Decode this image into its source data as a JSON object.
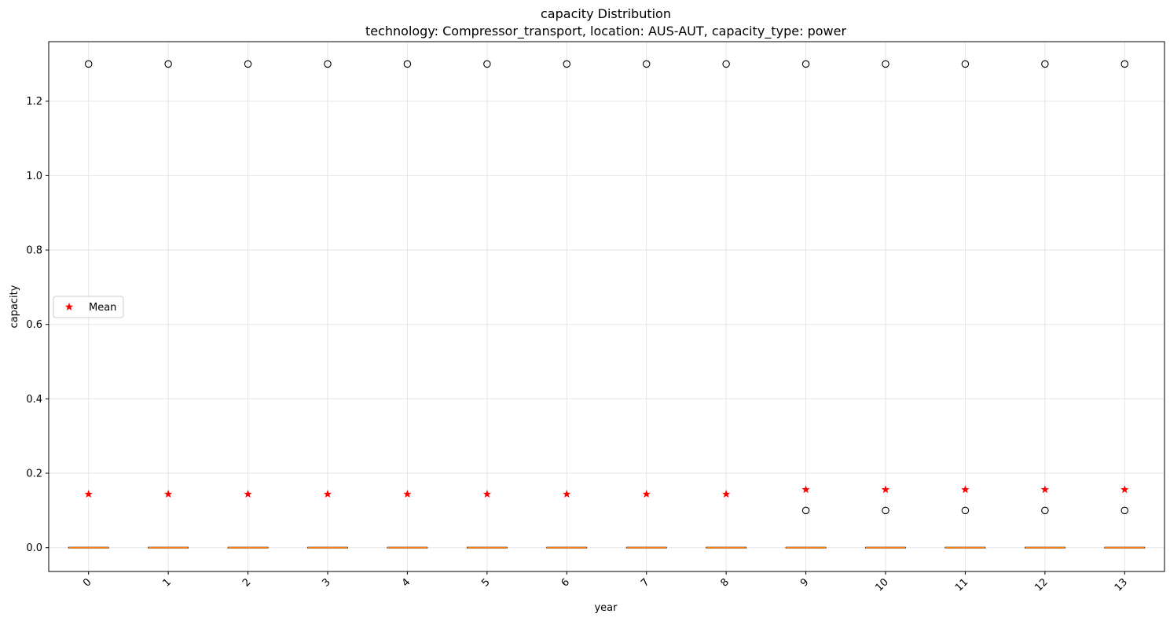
{
  "chart_data": {
    "type": "box",
    "title": "capacity Distribution",
    "subtitle": "technology: Compressor_transport, location: AUS-AUT, capacity_type: power",
    "xlabel": "year",
    "ylabel": "capacity",
    "categories": [
      "0",
      "1",
      "2",
      "3",
      "4",
      "5",
      "6",
      "7",
      "8",
      "9",
      "10",
      "11",
      "12",
      "13"
    ],
    "ylim": [
      -0.064,
      1.36
    ],
    "yticks": [
      0.0,
      0.2,
      0.4,
      0.6,
      0.8,
      1.0,
      1.2
    ],
    "ytick_labels": [
      "0.0",
      "0.2",
      "0.4",
      "0.6",
      "0.8",
      "1.0",
      "1.2"
    ],
    "grid": true,
    "legend": {
      "placement": "center-left",
      "entries": [
        {
          "label": "Mean",
          "marker": "star",
          "color": "#ff0000"
        }
      ]
    },
    "box_stats": [
      {
        "x": "0",
        "q1": 0,
        "median": 0,
        "q3": 0,
        "whisker_low": 0,
        "whisker_high": 0,
        "mean": 0.144,
        "outliers": [
          1.3
        ]
      },
      {
        "x": "1",
        "q1": 0,
        "median": 0,
        "q3": 0,
        "whisker_low": 0,
        "whisker_high": 0,
        "mean": 0.144,
        "outliers": [
          1.3
        ]
      },
      {
        "x": "2",
        "q1": 0,
        "median": 0,
        "q3": 0,
        "whisker_low": 0,
        "whisker_high": 0,
        "mean": 0.144,
        "outliers": [
          1.3
        ]
      },
      {
        "x": "3",
        "q1": 0,
        "median": 0,
        "q3": 0,
        "whisker_low": 0,
        "whisker_high": 0,
        "mean": 0.144,
        "outliers": [
          1.3
        ]
      },
      {
        "x": "4",
        "q1": 0,
        "median": 0,
        "q3": 0,
        "whisker_low": 0,
        "whisker_high": 0,
        "mean": 0.144,
        "outliers": [
          1.3
        ]
      },
      {
        "x": "5",
        "q1": 0,
        "median": 0,
        "q3": 0,
        "whisker_low": 0,
        "whisker_high": 0,
        "mean": 0.144,
        "outliers": [
          1.3
        ]
      },
      {
        "x": "6",
        "q1": 0,
        "median": 0,
        "q3": 0,
        "whisker_low": 0,
        "whisker_high": 0,
        "mean": 0.144,
        "outliers": [
          1.3
        ]
      },
      {
        "x": "7",
        "q1": 0,
        "median": 0,
        "q3": 0,
        "whisker_low": 0,
        "whisker_high": 0,
        "mean": 0.144,
        "outliers": [
          1.3
        ]
      },
      {
        "x": "8",
        "q1": 0,
        "median": 0,
        "q3": 0,
        "whisker_low": 0,
        "whisker_high": 0,
        "mean": 0.144,
        "outliers": [
          1.3
        ]
      },
      {
        "x": "9",
        "q1": 0,
        "median": 0,
        "q3": 0,
        "whisker_low": 0,
        "whisker_high": 0,
        "mean": 0.156,
        "outliers": [
          1.3,
          0.1
        ]
      },
      {
        "x": "10",
        "q1": 0,
        "median": 0,
        "q3": 0,
        "whisker_low": 0,
        "whisker_high": 0,
        "mean": 0.156,
        "outliers": [
          1.3,
          0.1
        ]
      },
      {
        "x": "11",
        "q1": 0,
        "median": 0,
        "q3": 0,
        "whisker_low": 0,
        "whisker_high": 0,
        "mean": 0.156,
        "outliers": [
          1.3,
          0.1
        ]
      },
      {
        "x": "12",
        "q1": 0,
        "median": 0,
        "q3": 0,
        "whisker_low": 0,
        "whisker_high": 0,
        "mean": 0.156,
        "outliers": [
          1.3,
          0.1
        ]
      },
      {
        "x": "13",
        "q1": 0,
        "median": 0,
        "q3": 0,
        "whisker_low": 0,
        "whisker_high": 0,
        "mean": 0.156,
        "outliers": [
          1.3,
          0.1
        ]
      }
    ],
    "colors": {
      "median": "#ff7f0e",
      "box_edge": "#000000",
      "mean_marker": "#ff0000",
      "outlier_edge": "#000000",
      "grid": "#e6e6e6"
    }
  }
}
